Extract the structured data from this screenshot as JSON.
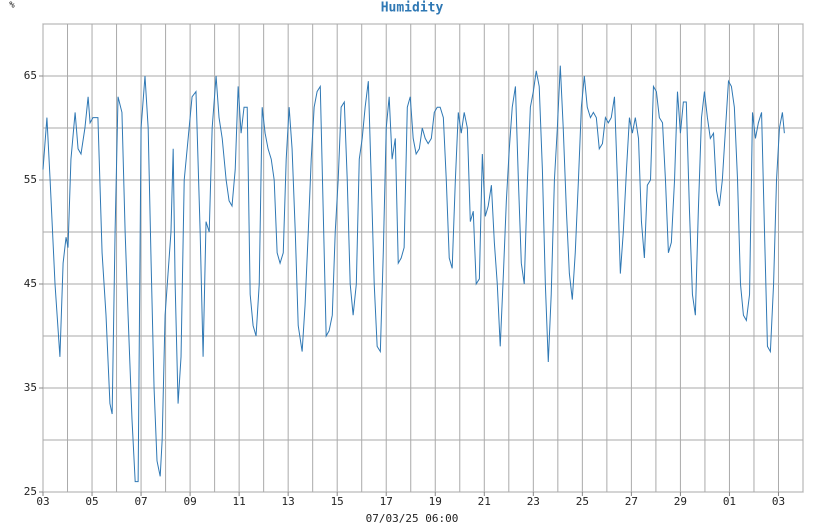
{
  "chart_data": {
    "type": "line",
    "title": "Humidity",
    "ylabel": "%",
    "xlabel": "07/03/25 06:00",
    "color": "#2f78b4",
    "xlim": [
      0,
      31
    ],
    "ylim": [
      25,
      70
    ],
    "xticks": [
      {
        "value": 0,
        "label": "03"
      },
      {
        "value": 2,
        "label": "05"
      },
      {
        "value": 4,
        "label": "07"
      },
      {
        "value": 6,
        "label": "09"
      },
      {
        "value": 8,
        "label": "11"
      },
      {
        "value": 10,
        "label": "13"
      },
      {
        "value": 12,
        "label": "15"
      },
      {
        "value": 14,
        "label": "17"
      },
      {
        "value": 16,
        "label": "19"
      },
      {
        "value": 18,
        "label": "21"
      },
      {
        "value": 20,
        "label": "23"
      },
      {
        "value": 22,
        "label": "25"
      },
      {
        "value": 24,
        "label": "27"
      },
      {
        "value": 26,
        "label": "29"
      },
      {
        "value": 28,
        "label": "01"
      },
      {
        "value": 30,
        "label": "03"
      }
    ],
    "yticks": [
      25,
      35,
      45,
      55,
      65
    ],
    "xgrid": [
      0,
      1,
      2,
      3,
      4,
      5,
      6,
      7,
      8,
      9,
      10,
      11,
      12,
      13,
      14,
      15,
      16,
      17,
      18,
      19,
      20,
      21,
      22,
      23,
      24,
      25,
      26,
      27,
      28,
      29,
      30,
      31
    ],
    "ygrid": [
      25,
      30,
      35,
      40,
      45,
      50,
      55,
      60,
      65,
      70
    ],
    "x": [
      0,
      0.16,
      0.29,
      0.49,
      0.69,
      0.82,
      0.94,
      1.02,
      1.14,
      1.31,
      1.43,
      1.55,
      1.71,
      1.84,
      1.92,
      2.04,
      2.24,
      2.41,
      2.57,
      2.73,
      2.82,
      2.94,
      3.06,
      3.22,
      3.35,
      3.47,
      3.63,
      3.76,
      3.88,
      4.0,
      4.16,
      4.29,
      4.41,
      4.53,
      4.65,
      4.78,
      4.86,
      4.98,
      5.1,
      5.22,
      5.31,
      5.39,
      5.51,
      5.63,
      5.76,
      5.92,
      6.08,
      6.24,
      6.41,
      6.53,
      6.65,
      6.78,
      6.9,
      7.06,
      7.18,
      7.31,
      7.47,
      7.59,
      7.71,
      7.84,
      7.96,
      8.08,
      8.2,
      8.33,
      8.45,
      8.57,
      8.69,
      8.82,
      8.94,
      9.06,
      9.18,
      9.31,
      9.43,
      9.55,
      9.67,
      9.8,
      9.92,
      10.04,
      10.16,
      10.29,
      10.41,
      10.57,
      10.69,
      10.82,
      10.94,
      11.06,
      11.18,
      11.31,
      11.43,
      11.55,
      11.67,
      11.8,
      11.92,
      12.04,
      12.16,
      12.29,
      12.41,
      12.53,
      12.65,
      12.78,
      12.9,
      13.02,
      13.14,
      13.27,
      13.39,
      13.51,
      13.63,
      13.76,
      13.88,
      14.0,
      14.12,
      14.24,
      14.37,
      14.49,
      14.61,
      14.73,
      14.86,
      14.98,
      15.1,
      15.22,
      15.35,
      15.47,
      15.59,
      15.71,
      15.84,
      15.96,
      16.08,
      16.2,
      16.33,
      16.45,
      16.57,
      16.69,
      16.82,
      16.94,
      17.06,
      17.18,
      17.31,
      17.43,
      17.55,
      17.67,
      17.8,
      17.92,
      18.04,
      18.16,
      18.29,
      18.41,
      18.53,
      18.65,
      18.78,
      18.9,
      19.02,
      19.14,
      19.27,
      19.39,
      19.51,
      19.63,
      19.76,
      19.88,
      20.0,
      20.12,
      20.24,
      20.37,
      20.49,
      20.61,
      20.73,
      20.86,
      20.98,
      21.1,
      21.22,
      21.35,
      21.47,
      21.59,
      21.71,
      21.84,
      21.96,
      22.08,
      22.2,
      22.33,
      22.45,
      22.57,
      22.69,
      22.82,
      22.94,
      23.06,
      23.18,
      23.31,
      23.43,
      23.55,
      23.67,
      23.8,
      23.92,
      24.04,
      24.16,
      24.29,
      24.41,
      24.53,
      24.65,
      24.78,
      24.9,
      25.02,
      25.14,
      25.27,
      25.39,
      25.51,
      25.63,
      25.76,
      25.88,
      26.0,
      26.12,
      26.24,
      26.37,
      26.49,
      26.61,
      26.73,
      26.86,
      26.98,
      27.1,
      27.22,
      27.35,
      27.47,
      27.59,
      27.71,
      27.84,
      27.96,
      28.08,
      28.2,
      28.33,
      28.45,
      28.57,
      28.69,
      28.82,
      28.94,
      29.06,
      29.18,
      29.31,
      29.43,
      29.55,
      29.67,
      29.8,
      29.92,
      30.04,
      30.16,
      30.24
    ],
    "values": [
      56,
      61,
      55,
      45,
      38,
      47,
      49.5,
      48.5,
      57,
      61.5,
      58,
      57.5,
      60,
      63,
      60.5,
      61,
      61,
      48,
      42,
      33.5,
      32.5,
      50,
      63,
      61.5,
      50,
      42,
      32,
      26,
      26,
      60,
      65,
      60,
      47,
      35,
      28,
      26.5,
      30,
      42,
      46,
      50,
      58,
      45,
      33.5,
      38,
      55,
      59,
      63,
      63.5,
      50,
      38,
      51,
      50,
      60,
      65,
      61,
      59,
      55,
      53,
      52.5,
      56,
      64,
      59.5,
      62,
      62,
      44,
      41,
      40,
      45,
      62,
      59.5,
      58,
      57,
      55,
      48,
      47,
      48,
      57,
      62,
      58,
      50,
      41,
      38.5,
      43,
      50,
      57,
      62,
      63.5,
      64,
      52,
      40,
      40.5,
      42,
      50,
      55,
      62,
      62.5,
      55,
      45,
      42,
      45,
      57,
      59,
      62,
      64.5,
      55,
      45,
      39,
      38.5,
      48,
      60,
      63,
      57,
      59,
      47,
      47.5,
      48.5,
      62,
      63,
      59,
      57.5,
      58,
      60,
      59,
      58.5,
      59,
      61.5,
      62,
      62,
      61,
      55,
      47.5,
      46.5,
      55,
      61.5,
      59.5,
      61.5,
      60,
      51,
      52,
      45,
      45.5,
      57.5,
      51.5,
      52.5,
      54.5,
      49,
      45,
      39,
      46,
      53,
      58,
      62,
      64,
      55,
      47,
      45,
      55,
      62,
      63.5,
      65.5,
      64,
      56,
      45,
      37.5,
      44,
      55,
      60,
      66,
      60,
      52,
      46,
      43.5,
      48,
      55,
      62,
      65,
      62,
      61,
      61.5,
      61,
      58,
      58.5,
      61,
      60.5,
      61,
      63,
      55,
      46,
      50,
      56,
      61,
      59.5,
      61,
      59,
      51,
      47.5,
      54.5,
      55,
      64,
      63.5,
      61,
      60.5,
      55,
      48,
      49,
      55,
      63.5,
      59.5,
      62.5,
      62.5,
      52,
      44,
      42,
      52,
      61,
      63.5,
      61,
      59,
      59.5,
      54,
      52.5,
      55,
      60,
      64.5,
      64,
      62,
      55,
      45,
      42,
      41.5,
      44,
      61.5,
      59,
      60.5,
      61.5,
      50,
      39,
      38.5,
      45,
      55,
      60,
      61.5,
      59.5
    ]
  }
}
